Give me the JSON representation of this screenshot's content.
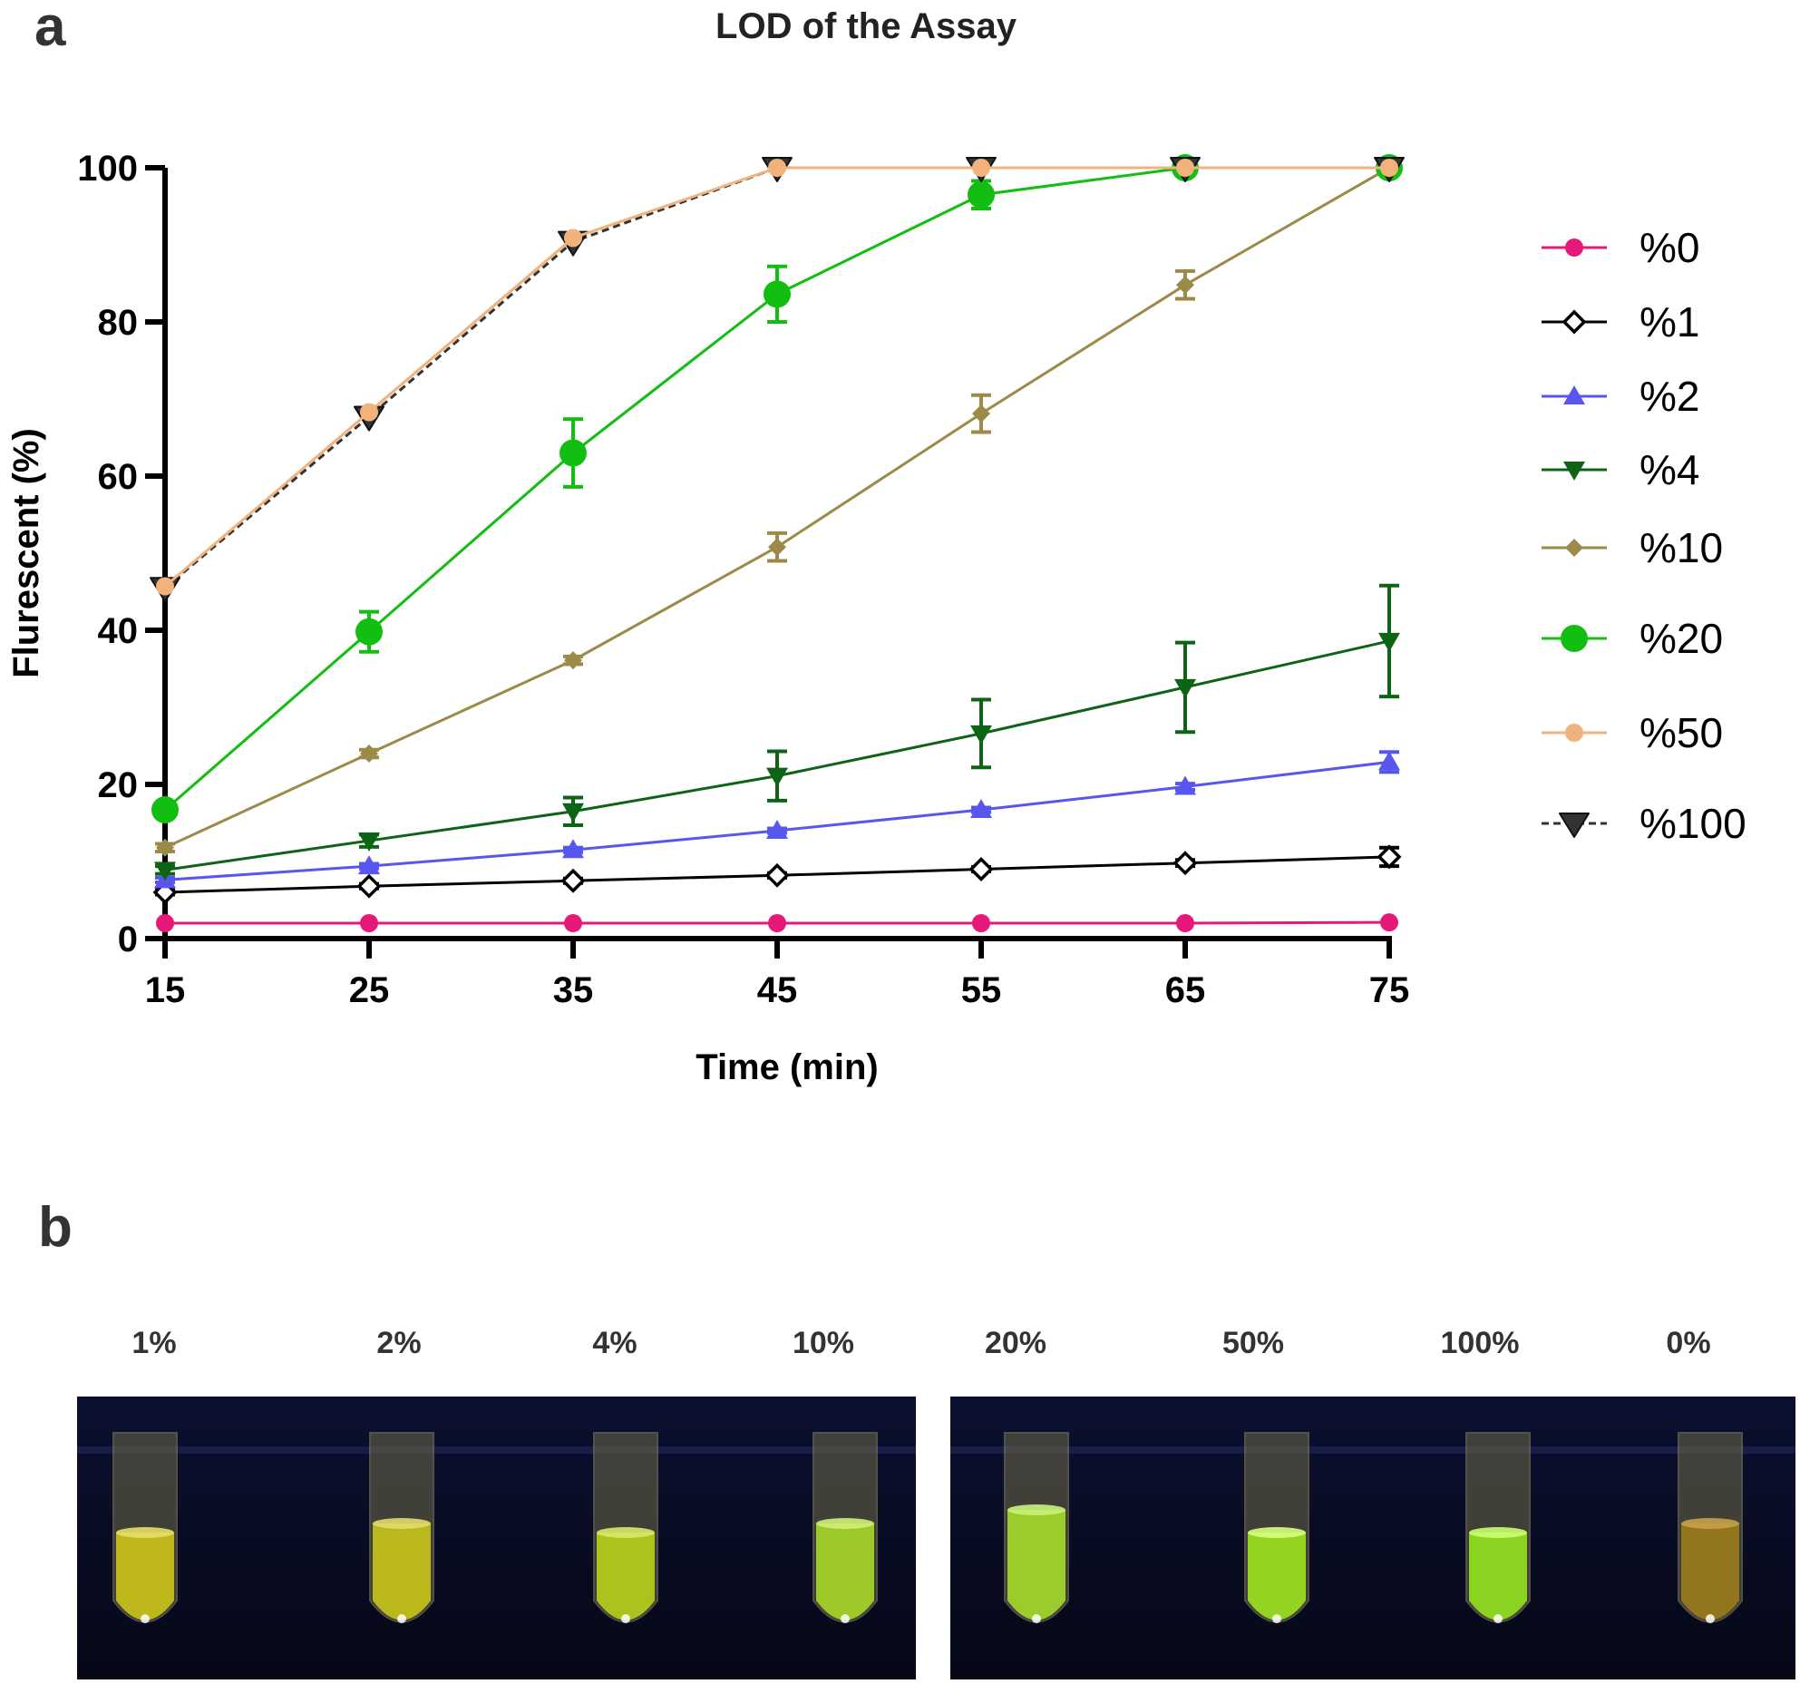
{
  "panel_a": {
    "letter": "a",
    "chart_data": {
      "type": "line",
      "title": "LOD of the Assay",
      "xlabel": "Time (min)",
      "ylabel": "Flurescent (%)",
      "x": [
        15,
        25,
        35,
        45,
        55,
        65,
        75
      ],
      "xlim": [
        15,
        75
      ],
      "ylim": [
        0,
        100
      ],
      "yticks": [
        0,
        20,
        40,
        60,
        80,
        100
      ],
      "grid": false,
      "legend_position": "right",
      "series": [
        {
          "name": "%0",
          "color": "#e6197b",
          "marker": "circle",
          "values": [
            2,
            2,
            2,
            2,
            2,
            2,
            2.1
          ],
          "errors": [
            0,
            0,
            0,
            0,
            0,
            0,
            0
          ]
        },
        {
          "name": "%1",
          "color": "#000000",
          "marker": "diamond-open",
          "values": [
            6,
            6.8,
            7.5,
            8.2,
            9,
            9.8,
            10.6
          ],
          "errors": [
            0.3,
            0.3,
            0.3,
            0.3,
            0.3,
            0.4,
            1.2
          ]
        },
        {
          "name": "%2",
          "color": "#5757f0",
          "marker": "triangle-up",
          "values": [
            7.6,
            9.4,
            11.5,
            14,
            16.7,
            19.7,
            22.9
          ],
          "errors": [
            0.3,
            0.3,
            0.3,
            0.3,
            0.3,
            0.4,
            1.3
          ]
        },
        {
          "name": "%4",
          "color": "#0d6415",
          "marker": "triangle-down",
          "values": [
            8.9,
            12.7,
            16.5,
            21.1,
            26.6,
            32.6,
            38.6
          ],
          "errors": [
            0.5,
            0.8,
            1.8,
            3.2,
            4.4,
            5.8,
            7.2
          ]
        },
        {
          "name": "%10",
          "color": "#9c8a48",
          "marker": "diamond",
          "values": [
            11.8,
            24,
            36.1,
            50.8,
            68.1,
            84.8,
            100
          ],
          "errors": [
            0.5,
            0.5,
            0.5,
            1.8,
            2.4,
            1.8,
            0
          ]
        },
        {
          "name": "%20",
          "color": "#12be12",
          "marker": "circle-large",
          "values": [
            16.7,
            39.8,
            63,
            83.6,
            96.5,
            100,
            100
          ],
          "errors": [
            0.8,
            2.6,
            4.4,
            3.6,
            1.8,
            0,
            0
          ]
        },
        {
          "name": "%50",
          "color": "#f2b27c",
          "marker": "circle",
          "values": [
            45.7,
            68.3,
            90.9,
            100,
            100,
            100,
            100
          ],
          "errors": [
            0,
            0,
            0,
            0,
            0,
            0,
            0
          ]
        },
        {
          "name": "%100",
          "color": "#333333",
          "marker": "triangle-down-large",
          "dashed": true,
          "values": [
            45.5,
            67.7,
            90.4,
            100,
            100,
            100,
            100
          ],
          "errors": [
            0,
            0,
            0,
            0,
            0,
            0,
            0
          ]
        }
      ]
    }
  },
  "panel_b": {
    "letter": "b",
    "tube_labels": [
      "1%",
      "2%",
      "4%",
      "10%",
      "20%",
      "50%",
      "100%",
      "0%"
    ]
  }
}
